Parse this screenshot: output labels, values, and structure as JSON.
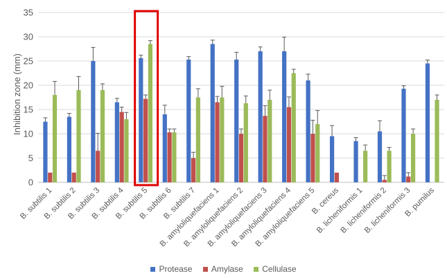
{
  "chart_data": {
    "type": "bar",
    "ylabel": "Inhibition zone (mm)",
    "ylim": [
      0,
      35
    ],
    "yticks": [
      0,
      5,
      10,
      15,
      20,
      25,
      30,
      35
    ],
    "grid": true,
    "legend_position": "bottom",
    "highlight": {
      "category": "B. subtilis 5",
      "color": "#e00000"
    },
    "categories": [
      "B. subtilis 1",
      "B. subtilis 2",
      "B. subtilis 3",
      "B. subtilis 4",
      "B. subtilis 5",
      "B. subtilis 6",
      "B. subtilis 7",
      "B. amyloliquefaciens 1",
      "B. amyloliquefaciens 2",
      "B. amyloliquefaciens 3",
      "B. amyloliquefaciens 4",
      "B. amyloliquefaciens 5",
      "B. cereus",
      "B. licheniformis 1",
      "B. licheniformis 2",
      "B. licheniformis 3",
      "B. pumilus"
    ],
    "series": [
      {
        "name": "Protease",
        "color": "#4472c4",
        "values": [
          12.5,
          13.5,
          25.0,
          16.5,
          25.6,
          14.0,
          25.3,
          28.5,
          25.3,
          27.0,
          27.0,
          21.0,
          9.5,
          8.5,
          10.5,
          19.3,
          24.5
        ],
        "errors": [
          0.8,
          0.7,
          2.8,
          0.8,
          0.6,
          1.9,
          0.6,
          0.8,
          1.5,
          0.9,
          2.9,
          1.3,
          2.2,
          0.7,
          2.2,
          0.6,
          0.7
        ]
      },
      {
        "name": "Amylase",
        "color": "#c0504d",
        "values": [
          2.0,
          2.0,
          6.5,
          14.5,
          17.2,
          10.3,
          5.0,
          16.5,
          10.0,
          13.7,
          15.5,
          10.0,
          2.0,
          0,
          0.5,
          1.2,
          0
        ],
        "errors": [
          0,
          0,
          3.6,
          1.0,
          0.8,
          0.7,
          1.2,
          1.2,
          1.0,
          2.1,
          2.1,
          2.8,
          0,
          0,
          0.9,
          0.8,
          0
        ]
      },
      {
        "name": "Cellulase",
        "color": "#9bbb59",
        "values": [
          18.0,
          19.0,
          19.0,
          13.0,
          28.5,
          10.3,
          17.5,
          17.5,
          16.3,
          17.0,
          22.5,
          12.0,
          0,
          6.5,
          6.5,
          10.0,
          17.0
        ],
        "errors": [
          2.8,
          2.8,
          1.3,
          1.4,
          0.7,
          0.7,
          1.8,
          2.3,
          1.5,
          2.0,
          0.8,
          2.8,
          0,
          1.2,
          0.7,
          1.0,
          1.0
        ]
      }
    ]
  }
}
